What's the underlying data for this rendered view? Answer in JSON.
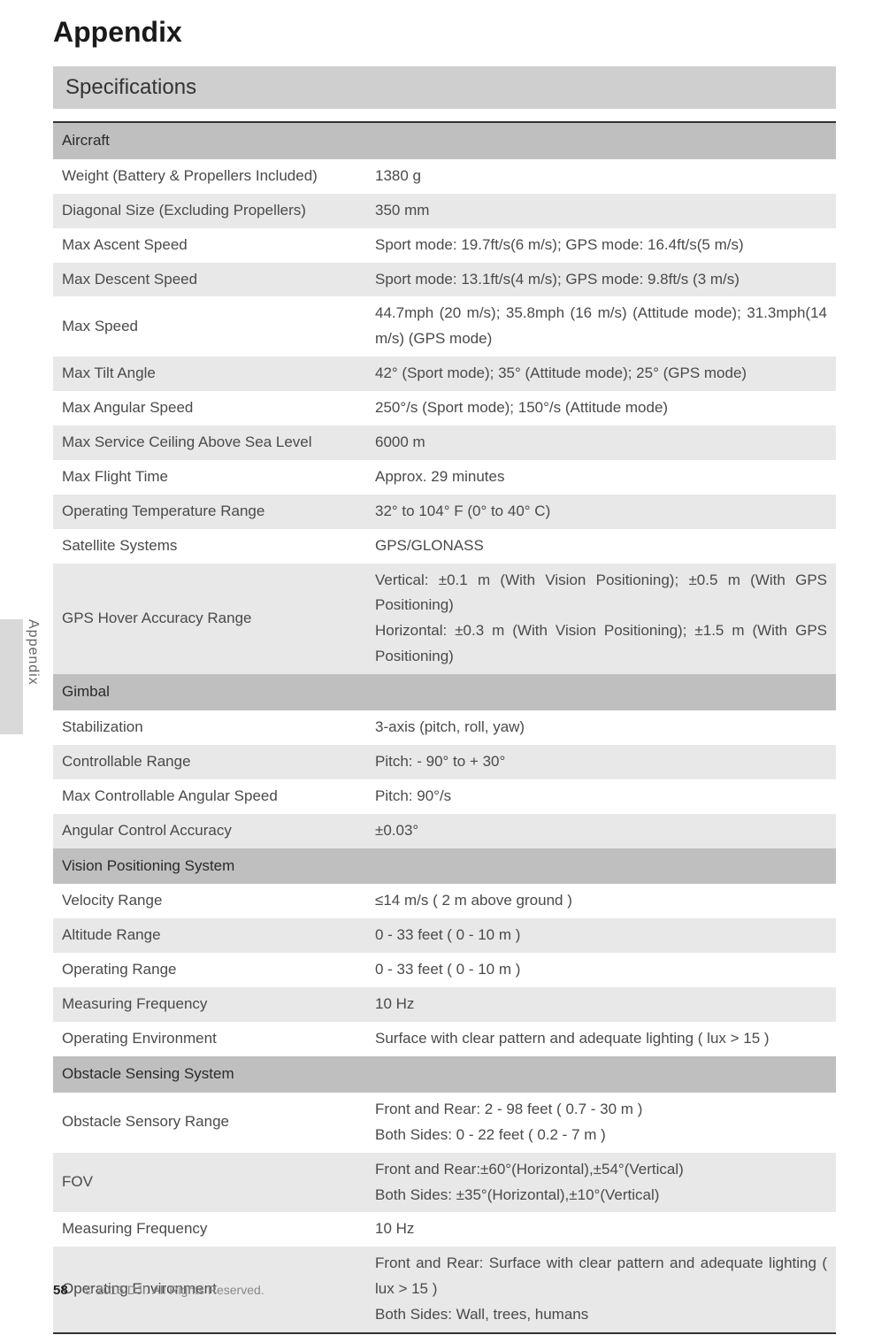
{
  "title": "Appendix",
  "section_heading": "Specifications",
  "side_tab_label": "Appendix",
  "colors": {
    "header_row_bg": "#bfbfbf",
    "alt_row_bg": "#e8e8e8",
    "section_bar_bg": "#cfcfcf",
    "text": "#4a4a4a",
    "title_text": "#1a1a1a",
    "table_border": "#333333"
  },
  "groups": [
    {
      "name": "Aircraft",
      "rows": [
        {
          "label": "Weight (Battery & Propellers Included)",
          "value": "1380 g"
        },
        {
          "label": "Diagonal Size (Excluding Propellers)",
          "value": "350 mm"
        },
        {
          "label": "Max Ascent Speed",
          "value": "Sport mode: 19.7ft/s(6 m/s); GPS mode: 16.4ft/s(5 m/s)"
        },
        {
          "label": "Max Descent Speed",
          "value": "Sport mode: 13.1ft/s(4 m/s); GPS mode: 9.8ft/s (3 m/s)"
        },
        {
          "label": "Max Speed",
          "value": "44.7mph (20 m/s); 35.8mph (16 m/s) (Attitude mode); 31.3mph(14 m/s) (GPS mode)"
        },
        {
          "label": "Max Tilt Angle",
          "value": "42° (Sport mode); 35° (Attitude mode); 25° (GPS mode)"
        },
        {
          "label": "Max Angular Speed",
          "value": "250°/s (Sport mode); 150°/s (Attitude mode)"
        },
        {
          "label": "Max Service Ceiling Above Sea Level",
          "value": "6000 m"
        },
        {
          "label": "Max Flight Time",
          "value": "Approx. 29 minutes"
        },
        {
          "label": "Operating Temperature Range",
          "value": "32° to 104° F (0° to 40° C)"
        },
        {
          "label": "Satellite Systems",
          "value": "GPS/GLONASS"
        },
        {
          "label": "GPS Hover Accuracy Range",
          "value": "Vertical: ±0.1 m (With Vision Positioning); ±0.5 m (With GPS Positioning)\nHorizontal: ±0.3 m (With Vision Positioning); ±1.5 m (With GPS Positioning)"
        }
      ]
    },
    {
      "name": "Gimbal",
      "rows": [
        {
          "label": "Stabilization",
          "value": "3-axis (pitch, roll, yaw)"
        },
        {
          "label": "Controllable Range",
          "value": "Pitch: - 90° to + 30°"
        },
        {
          "label": "Max Controllable Angular Speed",
          "value": "Pitch: 90°/s"
        },
        {
          "label": "Angular Control Accuracy",
          "value": "±0.03°"
        }
      ]
    },
    {
      "name": "Vision Positioning System",
      "rows": [
        {
          "label": "Velocity Range",
          "value": "≤14 m/s ( 2 m above ground )"
        },
        {
          "label": "Altitude Range",
          "value": "0 - 33 feet ( 0 - 10 m )"
        },
        {
          "label": "Operating Range",
          "value": "0 - 33 feet ( 0 - 10 m )"
        },
        {
          "label": "Measuring Frequency",
          "value": "10 Hz"
        },
        {
          "label": "Operating Environment",
          "value": "Surface with clear pattern and adequate lighting ( lux > 15 )"
        }
      ]
    },
    {
      "name": "Obstacle Sensing System",
      "rows": [
        {
          "label": "Obstacle Sensory Range",
          "value": "Front and Rear: 2 - 98 feet ( 0.7 - 30 m )\nBoth Sides: 0 - 22 feet ( 0.2 - 7 m )"
        },
        {
          "label": "FOV",
          "value": "Front and Rear:±60°(Horizontal),±54°(Vertical)\nBoth Sides: ±35°(Horizontal),±10°(Vertical)"
        },
        {
          "label": "Measuring Frequency",
          "value": "10 Hz"
        },
        {
          "label": "Operating Environment",
          "value": "Front and Rear: Surface with clear pattern and adequate lighting ( lux > 15 )\nBoth Sides: Wall, trees, humans"
        }
      ]
    }
  ],
  "footer": {
    "page_number": "58",
    "copyright": "© 2016 DJI. All Rights Reserved."
  }
}
